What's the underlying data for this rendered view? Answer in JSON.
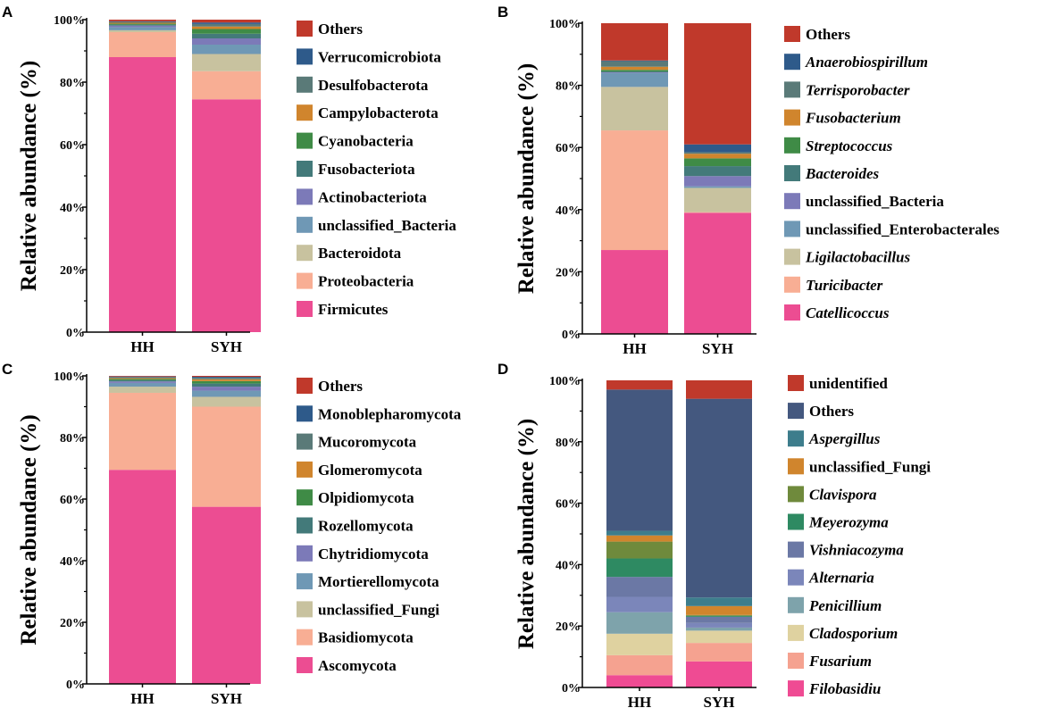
{
  "colors": {
    "Others": "#c0392b",
    "blue": "#2e5a8a",
    "slate": "#5a7a78",
    "orange": "#d0852d",
    "green": "#3f8b46",
    "teal": "#437a7a",
    "purple": "#7c7ab8",
    "steel": "#6f98b5",
    "khaki": "#c8c29f",
    "salmon": "#f8ae94",
    "pink": "#ec4d92",
    "navy": "#44587f",
    "teal2": "#3d7d8c",
    "olive": "#6f8a3c",
    "emerald": "#2e8a62",
    "slateblue": "#6b78a5",
    "periwinkle": "#7b86ba",
    "greyblue": "#7ea3ab",
    "cream": "#dfd2a0",
    "salmon2": "#f5a290",
    "pink2": "#ef4b93"
  },
  "chart_data": [
    {
      "panel": "A",
      "type": "stacked_bar",
      "ylabel": "Relative abundance (%)",
      "yticks": [
        "0%",
        "20%",
        "40%",
        "60%",
        "80%",
        "100%"
      ],
      "ylim": [
        0,
        100
      ],
      "categories": [
        "HH",
        "SYH"
      ],
      "series": [
        {
          "name": "Firmicutes",
          "italic": false,
          "color": "pink",
          "values": [
            88,
            74.5
          ]
        },
        {
          "name": "Proteobacteria",
          "italic": false,
          "color": "salmon",
          "values": [
            8,
            9
          ]
        },
        {
          "name": "Bacteroidota",
          "italic": false,
          "color": "khaki",
          "values": [
            0.6,
            5.5
          ]
        },
        {
          "name": "unclassified_Bacteria",
          "italic": false,
          "color": "steel",
          "values": [
            1,
            3
          ]
        },
        {
          "name": "Actinobacteriota",
          "italic": false,
          "color": "purple",
          "values": [
            0.5,
            2
          ]
        },
        {
          "name": "Fusobacteriota",
          "italic": false,
          "color": "teal",
          "values": [
            0.3,
            1.5
          ]
        },
        {
          "name": "Cyanobacteria",
          "italic": false,
          "color": "green",
          "values": [
            0.3,
            1.5
          ]
        },
        {
          "name": "Campylobacterota",
          "italic": false,
          "color": "orange",
          "values": [
            0.3,
            0.8
          ]
        },
        {
          "name": "Desulfobacterota",
          "italic": false,
          "color": "slate",
          "values": [
            0.3,
            0.8
          ]
        },
        {
          "name": "Verrucomicrobiota",
          "italic": false,
          "color": "blue",
          "values": [
            0.2,
            0.5
          ]
        },
        {
          "name": "Others",
          "italic": false,
          "color": "Others",
          "values": [
            0.5,
            0.9
          ]
        }
      ]
    },
    {
      "panel": "B",
      "type": "stacked_bar",
      "ylabel": "Relative abundance (%)",
      "yticks": [
        "0%",
        "20%",
        "40%",
        "60%",
        "80%",
        "100%"
      ],
      "ylim": [
        0,
        100
      ],
      "categories": [
        "HH",
        "SYH"
      ],
      "series": [
        {
          "name": "Catellicoccus",
          "italic": true,
          "color": "pink",
          "values": [
            27,
            39
          ]
        },
        {
          "name": "Turicibacter",
          "italic": true,
          "color": "salmon",
          "values": [
            38.5,
            0.2
          ]
        },
        {
          "name": "Ligilactobacillus",
          "italic": true,
          "color": "khaki",
          "values": [
            14,
            7.8
          ]
        },
        {
          "name": "unclassified_Enterobacterales",
          "italic": false,
          "color": "steel",
          "values": [
            4.5,
            0.5
          ]
        },
        {
          "name": "unclassified_Bacteria",
          "italic": false,
          "color": "purple",
          "values": [
            0.2,
            3.3
          ]
        },
        {
          "name": "Bacteroides",
          "italic": true,
          "color": "teal",
          "values": [
            0.3,
            3.2
          ]
        },
        {
          "name": "Streptococcus",
          "italic": true,
          "color": "green",
          "values": [
            0.5,
            2.5
          ]
        },
        {
          "name": "Fusobacterium",
          "italic": true,
          "color": "orange",
          "values": [
            1,
            1.5
          ]
        },
        {
          "name": "Terrisporobacter",
          "italic": true,
          "color": "slate",
          "values": [
            1.8,
            0.5
          ]
        },
        {
          "name": "Anaerobiospirillum",
          "italic": true,
          "color": "blue",
          "values": [
            0.2,
            2.5
          ]
        },
        {
          "name": "Others",
          "italic": false,
          "color": "Others",
          "values": [
            12,
            39
          ]
        }
      ]
    },
    {
      "panel": "C",
      "type": "stacked_bar",
      "ylabel": "Relative abundance (%)",
      "yticks": [
        "0%",
        "20%",
        "40%",
        "60%",
        "80%",
        "100%"
      ],
      "ylim": [
        0,
        100
      ],
      "categories": [
        "HH",
        "SYH"
      ],
      "series": [
        {
          "name": "Ascomycota",
          "italic": false,
          "color": "pink",
          "values": [
            69.5,
            57.5
          ]
        },
        {
          "name": "Basidiomycota",
          "italic": false,
          "color": "salmon",
          "values": [
            25,
            32.5
          ]
        },
        {
          "name": "unclassified_Fungi",
          "italic": false,
          "color": "khaki",
          "values": [
            2,
            3.2
          ]
        },
        {
          "name": "Mortierellomycota",
          "italic": false,
          "color": "steel",
          "values": [
            1.2,
            2
          ]
        },
        {
          "name": "Chytridiomycota",
          "italic": false,
          "color": "purple",
          "values": [
            0.5,
            1.3
          ]
        },
        {
          "name": "Rozellomycota",
          "italic": false,
          "color": "teal",
          "values": [
            0.4,
            1
          ]
        },
        {
          "name": "Olpidiomycota",
          "italic": false,
          "color": "green",
          "values": [
            0.4,
            0.8
          ]
        },
        {
          "name": "Glomeromycota",
          "italic": false,
          "color": "orange",
          "values": [
            0.3,
            0.6
          ]
        },
        {
          "name": "Mucoromycota",
          "italic": false,
          "color": "slate",
          "values": [
            0.3,
            0.5
          ]
        },
        {
          "name": "Monoblepharomycota",
          "italic": false,
          "color": "blue",
          "values": [
            0.2,
            0.3
          ]
        },
        {
          "name": "Others",
          "italic": false,
          "color": "Others",
          "values": [
            0.2,
            0.3
          ]
        }
      ]
    },
    {
      "panel": "D",
      "type": "stacked_bar",
      "ylabel": "Relative abundance (%)",
      "yticks": [
        "0%",
        "20%",
        "40%",
        "60%",
        "80%",
        "100%"
      ],
      "ylim": [
        0,
        100
      ],
      "categories": [
        "HH",
        "SYH"
      ],
      "series": [
        {
          "name": "Filobasidiu",
          "italic": true,
          "color": "pink2",
          "values": [
            4,
            8.5
          ]
        },
        {
          "name": "Fusarium",
          "italic": true,
          "color": "salmon2",
          "values": [
            6.5,
            6
          ]
        },
        {
          "name": "Cladosporium",
          "italic": true,
          "color": "cream",
          "values": [
            7,
            4
          ]
        },
        {
          "name": "Penicillium",
          "italic": true,
          "color": "greyblue",
          "values": [
            7,
            1
          ]
        },
        {
          "name": "Alternaria",
          "italic": true,
          "color": "periwinkle",
          "values": [
            5,
            1.5
          ]
        },
        {
          "name": "Vishniacozyma",
          "italic": true,
          "color": "slateblue",
          "values": [
            6.5,
            2
          ]
        },
        {
          "name": "Meyerozyma",
          "italic": true,
          "color": "emerald",
          "values": [
            6,
            0.3
          ]
        },
        {
          "name": "Clavispora",
          "italic": true,
          "color": "olive",
          "values": [
            5.5,
            0.3
          ]
        },
        {
          "name": "unclassified_Fungi",
          "italic": false,
          "color": "orange",
          "values": [
            2,
            2.9
          ]
        },
        {
          "name": "Aspergillus",
          "italic": true,
          "color": "teal2",
          "values": [
            1.5,
            2.8
          ]
        },
        {
          "name": "Others",
          "italic": false,
          "color": "navy",
          "values": [
            46,
            64.7
          ]
        },
        {
          "name": "unidentified",
          "italic": false,
          "color": "Others",
          "values": [
            3,
            6
          ]
        }
      ]
    }
  ]
}
